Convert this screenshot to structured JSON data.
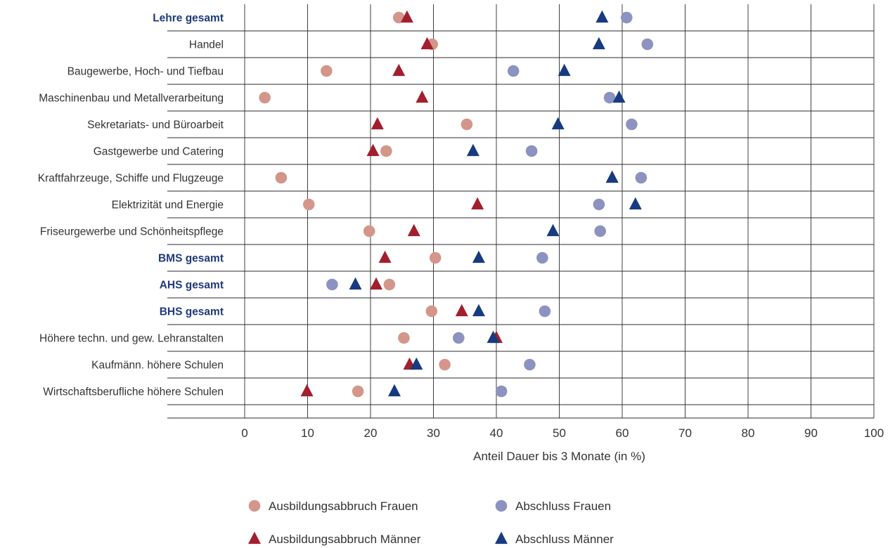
{
  "chart_data": {
    "type": "scatter",
    "xlabel": "Anteil Dauer bis 3 Monate (in %)",
    "xlim": [
      0,
      100
    ],
    "xticks": [
      "0",
      "10",
      "20",
      "30",
      "40",
      "50",
      "60",
      "70",
      "80",
      "90",
      "100"
    ],
    "grid": true,
    "legend_position": "bottom",
    "categories": [
      "Lehre gesamt",
      "Handel",
      "Baugewerbe, Hoch- und Tiefbau",
      "Maschinenbau und Metallverarbeitung",
      "Sekretariats- und Büroarbeit",
      "Gastgewerbe und Catering",
      "Kraftfahrzeuge, Schiffe und Flugzeuge",
      "Elektrizität und Energie",
      "Friseurgewerbe und Schönheitspflege",
      "BMS gesamt",
      "AHS gesamt",
      "BHS gesamt",
      "Höhere techn. und gew. Lehranstalten",
      "Kaufmänn. höhere Schulen",
      "Wirtschaftsberufliche höhere Schulen"
    ],
    "bold_categories": [
      "Lehre gesamt",
      "BMS gesamt",
      "AHS gesamt",
      "BHS gesamt"
    ],
    "series": [
      {
        "name": "Ausbildungsabbruch Frauen",
        "marker": "circle",
        "color": "#d4968a",
        "values": [
          24.5,
          29.8,
          13.0,
          3.2,
          35.3,
          22.5,
          5.8,
          10.2,
          19.8,
          30.3,
          23.0,
          29.7,
          25.3,
          31.8,
          18.0
        ]
      },
      {
        "name": "Abschluss Frauen",
        "marker": "circle",
        "color": "#8c93c0",
        "values": [
          60.7,
          64.0,
          42.7,
          58.0,
          61.5,
          45.6,
          63.0,
          56.3,
          56.5,
          47.3,
          13.9,
          47.7,
          34.0,
          45.3,
          40.8
        ]
      },
      {
        "name": "Ausbildungsabbruch Männer",
        "marker": "triangle",
        "color": "#a31f2e",
        "values": [
          25.8,
          29.0,
          24.5,
          28.2,
          21.1,
          20.4,
          58.4,
          37.0,
          26.9,
          22.3,
          20.9,
          34.5,
          40.0,
          26.2,
          9.9
        ]
      },
      {
        "name": "Abschluss Männer",
        "marker": "triangle",
        "color": "#173b80",
        "values": [
          56.8,
          56.3,
          50.8,
          59.5,
          49.8,
          36.3,
          58.4,
          62.1,
          49.0,
          37.2,
          17.6,
          37.2,
          39.5,
          27.3,
          23.8
        ]
      }
    ]
  }
}
